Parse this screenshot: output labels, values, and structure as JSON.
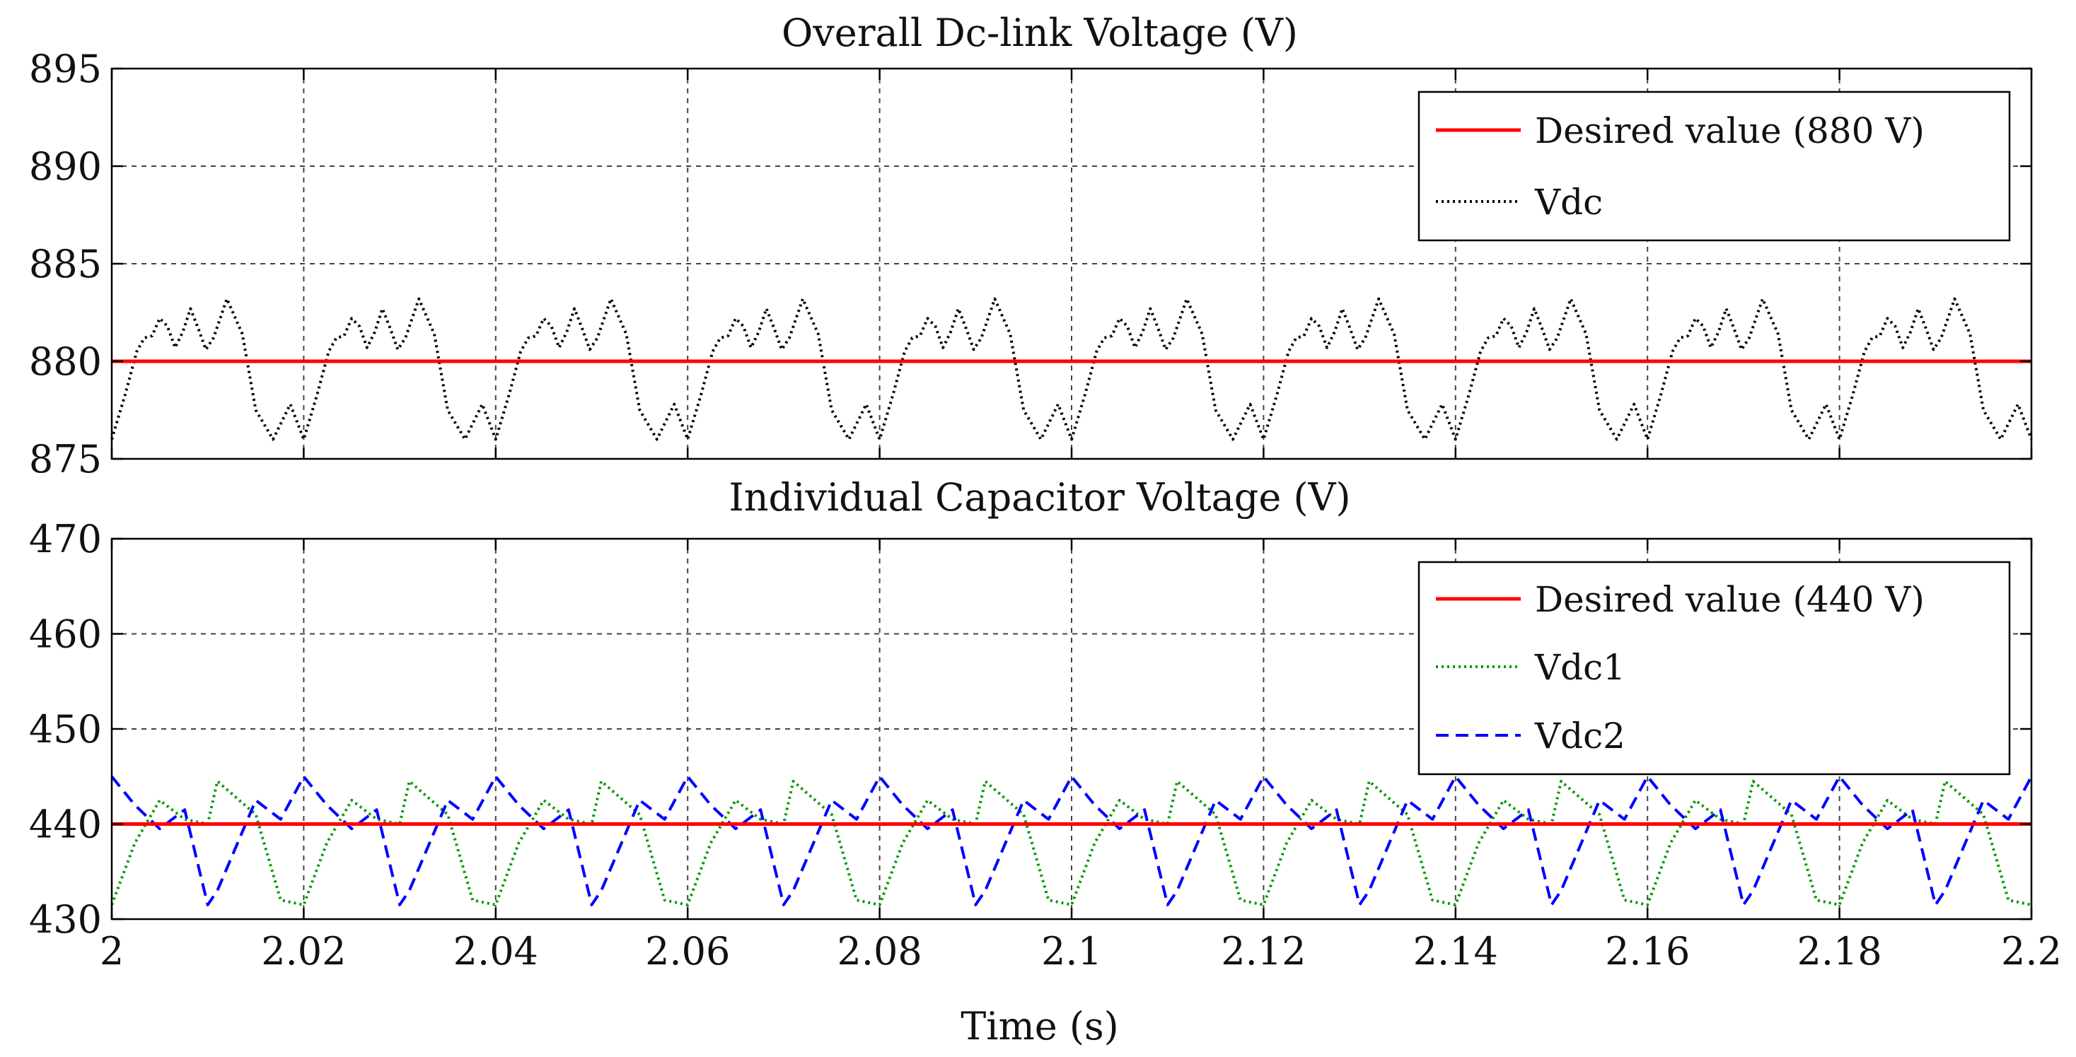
{
  "chart_data": [
    {
      "type": "line",
      "title": "Overall Dc-link Voltage (V)",
      "xlabel": "",
      "ylabel": "",
      "xlim": [
        2,
        2.2
      ],
      "ylim": [
        875,
        895
      ],
      "x_ticks": [
        "2",
        "2.02",
        "2.04",
        "2.06",
        "2.08",
        "2.1",
        "2.12",
        "2.14",
        "2.16",
        "2.18",
        "2.2"
      ],
      "x_ticks_shown": false,
      "y_ticks": [
        "875",
        "880",
        "885",
        "890",
        "895"
      ],
      "grid": true,
      "legend_position": "top-right",
      "period": 0.02,
      "series": [
        {
          "name": "Desired value (880 V)",
          "color": "#ff0000",
          "style": "solid",
          "constant": 880
        },
        {
          "name": "Vdc",
          "color": "#000000",
          "style": "dotted",
          "waveform_phase": [
            0,
            0.07,
            0.13,
            0.17,
            0.21,
            0.25,
            0.29,
            0.33,
            0.37,
            0.41,
            0.45,
            0.49,
            0.53,
            0.6,
            0.68,
            0.75,
            0.84,
            0.93,
            1.0
          ],
          "waveform_value": [
            876,
            878.3,
            880.5,
            881.2,
            881.3,
            882.2,
            881.8,
            880.7,
            881.5,
            882.7,
            881.7,
            880.6,
            881.2,
            883.2,
            881.4,
            877.5,
            876,
            877.8,
            876
          ]
        }
      ]
    },
    {
      "type": "line",
      "title": "Individual Capacitor Voltage (V)",
      "xlabel": "Time (s)",
      "ylabel": "",
      "xlim": [
        2,
        2.2
      ],
      "ylim": [
        430,
        470
      ],
      "x_ticks": [
        "2",
        "2.02",
        "2.04",
        "2.06",
        "2.08",
        "2.1",
        "2.12",
        "2.14",
        "2.16",
        "2.18",
        "2.2"
      ],
      "y_ticks": [
        "430",
        "440",
        "450",
        "460",
        "470"
      ],
      "grid": true,
      "legend_position": "top-right",
      "period": 0.02,
      "series": [
        {
          "name": "Desired value (440 V)",
          "color": "#ff0000",
          "style": "solid",
          "constant": 440
        },
        {
          "name": "Vdc1",
          "color": "#009900",
          "style": "dotted",
          "waveform_phase": [
            0,
            0.12,
            0.25,
            0.38,
            0.5,
            0.55,
            0.75,
            0.88,
            1.0
          ],
          "waveform_value": [
            431.5,
            438,
            442.5,
            440.5,
            440,
            444.5,
            441,
            432,
            431.5
          ]
        },
        {
          "name": "Vdc2",
          "color": "#0000ff",
          "style": "dashed",
          "waveform_phase": [
            0,
            0.12,
            0.25,
            0.38,
            0.5,
            0.55,
            0.75,
            0.88,
            1.0
          ],
          "waveform_value": [
            445,
            442,
            439.5,
            441.5,
            431.5,
            433,
            442.5,
            440.5,
            445
          ]
        }
      ]
    }
  ]
}
